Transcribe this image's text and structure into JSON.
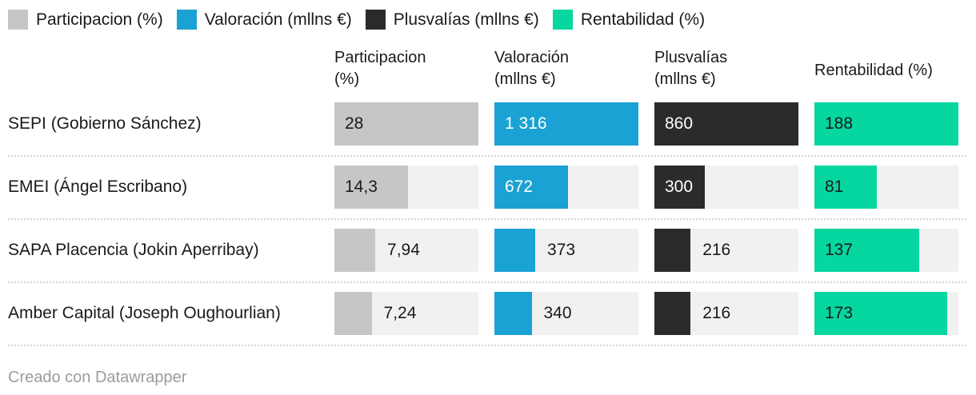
{
  "legend": {
    "items": [
      {
        "label": "Participacion (%)",
        "color": "#c6c6c6"
      },
      {
        "label": "Valoración (mllns €)",
        "color": "#1ba2d4"
      },
      {
        "label": "Plusvalías (mllns €)",
        "color": "#2b2b2b"
      },
      {
        "label": "Rentabilidad (%)",
        "color": "#06d6a0"
      }
    ]
  },
  "headers": [
    {
      "l1": "Participacion",
      "l2": "(%)"
    },
    {
      "l1": "Valoración",
      "l2": "(mllns €)"
    },
    {
      "l1": "Plusvalías",
      "l2": "(mllns €)"
    },
    {
      "l1": "Rentabilidad (%)",
      "l2": ""
    }
  ],
  "chart_data": {
    "type": "bar",
    "title": "",
    "legend_position": "top",
    "columns": [
      {
        "header": "Participacion (%)",
        "color": "#c6c6c6",
        "track_color": "#f1f1f1",
        "max": 28
      },
      {
        "header": "Valoración (mllns €)",
        "color": "#1ba2d4",
        "track_color": "#f1f1f1",
        "max": 1316
      },
      {
        "header": "Plusvalías (mllns €)",
        "color": "#2b2b2b",
        "track_color": "#f1f1f1",
        "max": 860
      },
      {
        "header": "Rentabilidad (%)",
        "color": "#06d6a0",
        "track_color": "#f1f1f1",
        "max": 188
      }
    ],
    "rows": [
      {
        "label": "SEPI (Gobierno Sánchez)",
        "values": [
          28,
          1316,
          860,
          188
        ],
        "display": [
          "28",
          "1 316",
          "860",
          "188"
        ]
      },
      {
        "label": "EMEI (Ángel Escribano)",
        "values": [
          14.3,
          672,
          300,
          81
        ],
        "display": [
          "14,3",
          "672",
          "300",
          "81"
        ]
      },
      {
        "label": "SAPA Placencia (Jokin Aperribay)",
        "values": [
          7.94,
          373,
          216,
          137
        ],
        "display": [
          "7,94",
          "373",
          "216",
          "137"
        ]
      },
      {
        "label": "Amber Capital (Joseph Oughourlian)",
        "values": [
          7.24,
          340,
          216,
          173
        ],
        "display": [
          "7,24",
          "340",
          "216",
          "173"
        ]
      }
    ]
  },
  "footer": {
    "credit": "Creado con Datawrapper"
  }
}
